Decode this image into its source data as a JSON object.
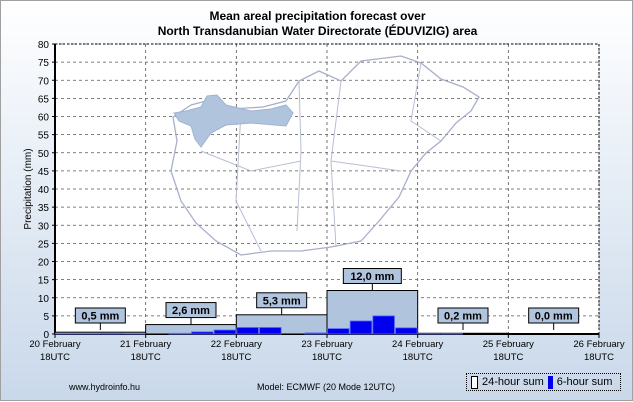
{
  "chart_data": {
    "type": "bar",
    "title": "Mean areal precipitation forecast over",
    "subtitle": "North Transdanubian Water Directorate (ÉDUVIZIG) area",
    "ylabel": "Precipitation (mm)",
    "xlabel": "",
    "ylim": [
      0,
      80
    ],
    "yticks": [
      0,
      5,
      10,
      15,
      20,
      25,
      30,
      35,
      40,
      45,
      50,
      55,
      60,
      65,
      70,
      75,
      80
    ],
    "grid": true,
    "x_tick_labels": [
      [
        "20 February",
        "18UTC"
      ],
      [
        "21 February",
        "18UTC"
      ],
      [
        "22 February",
        "18UTC"
      ],
      [
        "23 February",
        "18UTC"
      ],
      [
        "24 February",
        "18UTC"
      ],
      [
        "25 February",
        "18UTC"
      ],
      [
        "26 February",
        "18UTC"
      ]
    ],
    "series": [
      {
        "name": "24-hour sum",
        "color": "#b0c4de",
        "values": [
          0.5,
          2.6,
          5.3,
          12.0,
          0.2,
          0.0
        ],
        "labels": [
          "0,5 mm",
          "2,6 mm",
          "5,3 mm",
          "12,0 mm",
          "0,2 mm",
          "0,0 mm"
        ]
      },
      {
        "name": "6-hour sum",
        "color": "#0000ee",
        "values": [
          0.1,
          0.1,
          0.2,
          0.1,
          0.0,
          0.2,
          0.6,
          1.1,
          1.8,
          1.8,
          0.0,
          0.3,
          1.5,
          3.6,
          5.0,
          1.7,
          0.1,
          0.1,
          0.0,
          0.0,
          0.0,
          0.0,
          0.0,
          0.0
        ]
      }
    ],
    "legend": "bottom-right"
  },
  "footer": {
    "site": "www.hydroinfo.hu",
    "model": "Model: ECMWF (20  Mode 12UTC)"
  },
  "legend_labels": {
    "daily": "24-hour sum",
    "six_hour": "6-hour sum"
  }
}
